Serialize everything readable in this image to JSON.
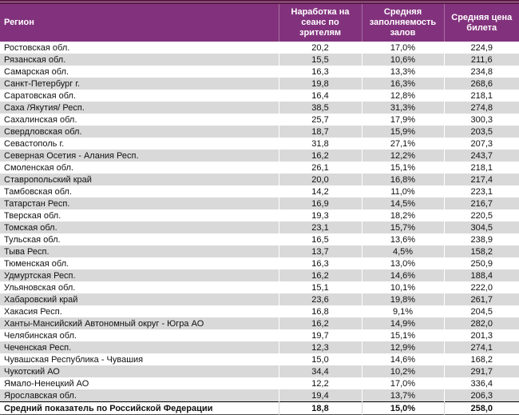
{
  "chart_data": {
    "type": "table",
    "title": "",
    "columns": [
      "Регион",
      "Наработка на сеанс по зрителям",
      "Средняя заполняемость залов",
      "Средняя цена билета"
    ],
    "rows": [
      [
        "Ростовская обл.",
        "20,2",
        "17,0%",
        "224,9"
      ],
      [
        "Рязанская обл.",
        "15,5",
        "10,6%",
        "211,6"
      ],
      [
        "Самарская обл.",
        "16,3",
        "13,3%",
        "234,8"
      ],
      [
        "Санкт-Петербург г.",
        "19,8",
        "16,3%",
        "268,6"
      ],
      [
        "Саратовская обл.",
        "16,4",
        "12,8%",
        "218,1"
      ],
      [
        "Саха /Якутия/ Респ.",
        "38,5",
        "31,3%",
        "274,8"
      ],
      [
        "Сахалинская обл.",
        "25,7",
        "17,9%",
        "300,3"
      ],
      [
        "Свердловская обл.",
        "18,7",
        "15,9%",
        "203,5"
      ],
      [
        "Севастополь г.",
        "31,8",
        "27,1%",
        "207,3"
      ],
      [
        "Северная Осетия - Алания Респ.",
        "16,2",
        "12,2%",
        "243,7"
      ],
      [
        "Смоленская обл.",
        "26,1",
        "15,1%",
        "218,1"
      ],
      [
        "Ставропольский край",
        "20,0",
        "16,8%",
        "217,4"
      ],
      [
        "Тамбовская обл.",
        "14,2",
        "11,0%",
        "223,1"
      ],
      [
        "Татарстан Респ.",
        "16,9",
        "14,5%",
        "216,7"
      ],
      [
        "Тверская обл.",
        "19,3",
        "18,2%",
        "220,5"
      ],
      [
        "Томская обл.",
        "23,1",
        "15,7%",
        "304,5"
      ],
      [
        "Тульская обл.",
        "16,5",
        "13,6%",
        "238,9"
      ],
      [
        "Тыва Респ.",
        "13,7",
        "4,5%",
        "158,2"
      ],
      [
        "Тюменская обл.",
        "16,3",
        "13,0%",
        "250,9"
      ],
      [
        "Удмуртская Респ.",
        "16,2",
        "14,6%",
        "188,4"
      ],
      [
        "Ульяновская обл.",
        "15,1",
        "10,1%",
        "222,0"
      ],
      [
        "Хабаровский край",
        "23,6",
        "19,8%",
        "261,7"
      ],
      [
        "Хакасия Респ.",
        "16,8",
        "9,1%",
        "204,5"
      ],
      [
        "Ханты-Мансийский Автономный округ - Югра АО",
        "16,2",
        "14,9%",
        "282,0"
      ],
      [
        "Челябинская обл.",
        "19,7",
        "15,1%",
        "201,3"
      ],
      [
        "Чеченская Респ.",
        "12,3",
        "12,9%",
        "274,1"
      ],
      [
        "Чувашская Республика - Чувашия",
        "15,0",
        "14,6%",
        "168,2"
      ],
      [
        "Чукотский АО",
        "34,4",
        "10,2%",
        "291,7"
      ],
      [
        "Ямало-Ненецкий АО",
        "12,2",
        "17,0%",
        "336,4"
      ],
      [
        "Ярославская обл.",
        "19,4",
        "13,7%",
        "206,3"
      ]
    ],
    "footer": [
      "Средний показатель по Российской Федерации",
      "18,8",
      "15,0%",
      "258,0"
    ],
    "layout_hints": {
      "stripe_alternating": true,
      "footer_bold": true
    }
  },
  "colors": {
    "header_bg": "#82327d",
    "header_text": "#ffffff",
    "header_separator": "#a4709e",
    "top_border_dark": "#5c1a45",
    "top_border_light": "#b087ab",
    "row_stripe": "#d9d9d9",
    "footer_top_border": "#000000",
    "table_bottom_border": "#4d4d4d",
    "body_text": "#111111"
  }
}
